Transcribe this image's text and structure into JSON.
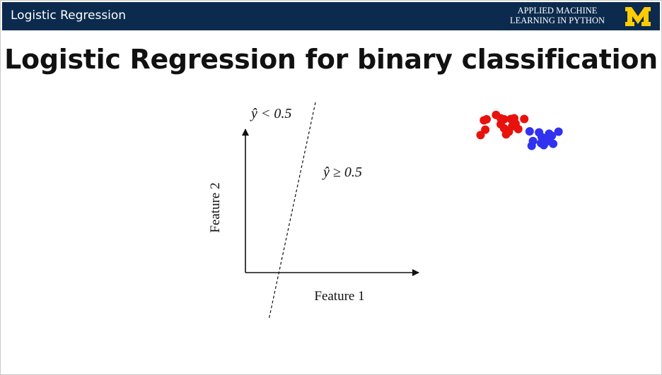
{
  "header": {
    "title": "Logistic Regression",
    "brand_line1": "APPLIED MACHINE",
    "brand_line2": "LEARNING IN PYTHON",
    "logo_letter": "M",
    "bar_color": "#0b2a4d",
    "logo_color": "#ffcb05"
  },
  "slide": {
    "title": "Logistic Regression for binary classification"
  },
  "diagram": {
    "x_axis_label": "Feature 1",
    "y_axis_label": "Feature 2",
    "region_low_label": "ŷ < 0.5",
    "region_high_label": "ŷ ≥ 0.5",
    "class_colors": {
      "red": "#e8120c",
      "blue": "#3131f0"
    },
    "red_points": [
      [
        -1.5,
        1.7
      ],
      [
        -1.1,
        1.85
      ],
      [
        0.3,
        2.5
      ],
      [
        1.0,
        2.0
      ],
      [
        1.5,
        1.85
      ],
      [
        2.5,
        1.9
      ],
      [
        2.7,
        1.85
      ],
      [
        3.0,
        2.0
      ],
      [
        4.5,
        1.9
      ],
      [
        1.0,
        1.1
      ],
      [
        3.2,
        1.2
      ],
      [
        1.5,
        0.5
      ],
      [
        2.7,
        0.8
      ],
      [
        3.6,
        0.4
      ],
      [
        -1.3,
        0.3
      ],
      [
        -2.0,
        -0.5
      ],
      [
        1.8,
        -0.4
      ],
      [
        2.2,
        0.0
      ]
    ],
    "blue_points": [
      [
        5.3,
        0.05
      ],
      [
        6.7,
        -0.1
      ],
      [
        7.1,
        -0.8
      ],
      [
        8.2,
        -0.3
      ],
      [
        8.0,
        -1.1
      ],
      [
        8.6,
        -0.6
      ],
      [
        9.6,
        0.0
      ],
      [
        5.8,
        -1.4
      ],
      [
        7.0,
        -1.7
      ],
      [
        8.1,
        -1.4
      ],
      [
        8.8,
        -1.8
      ],
      [
        5.6,
        -2.1
      ],
      [
        7.4,
        -2.0
      ]
    ]
  }
}
